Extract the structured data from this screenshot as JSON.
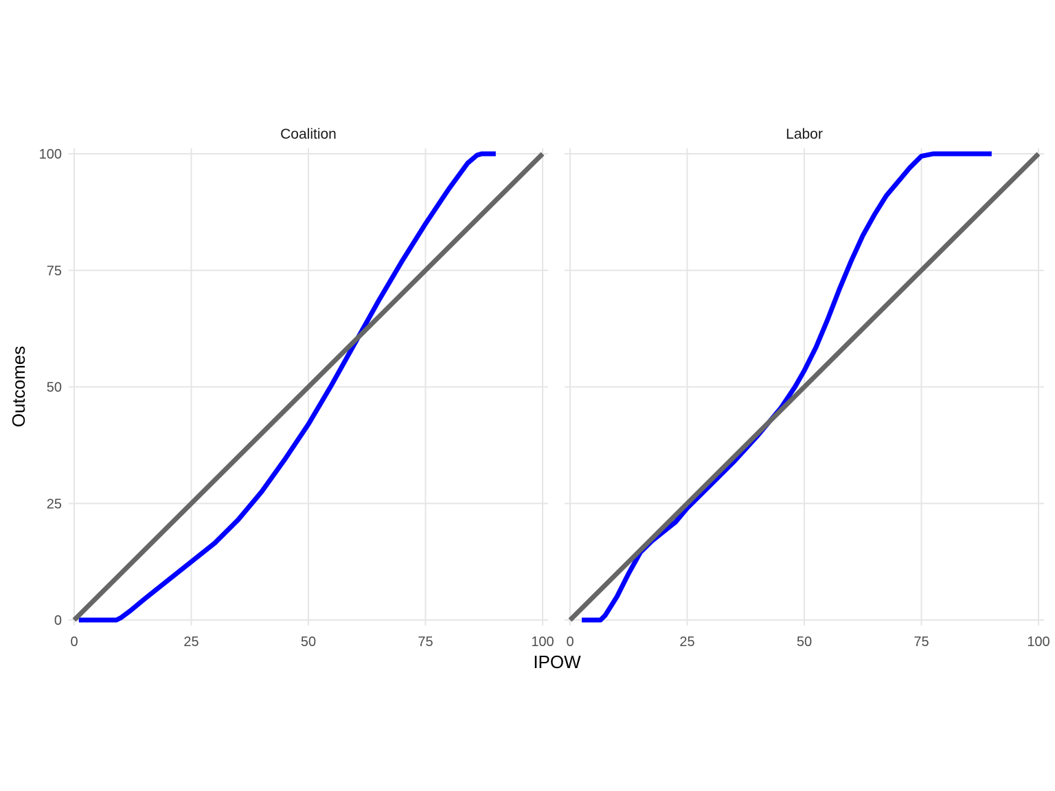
{
  "chart_data": {
    "type": "line",
    "xlabel": "IPOW",
    "ylabel": "Outcomes",
    "xlim": [
      0,
      100
    ],
    "ylim": [
      0,
      100
    ],
    "x_ticks": [
      0,
      25,
      50,
      75,
      100
    ],
    "y_ticks": [
      0,
      25,
      50,
      75,
      100
    ],
    "grid": true,
    "colors": {
      "curve": "#0000ff",
      "reference": "#666666",
      "grid": "#e5e5e5"
    },
    "panels": [
      {
        "label": "Coalition",
        "curve": [
          [
            1,
            0
          ],
          [
            5,
            0
          ],
          [
            9,
            0
          ],
          [
            10,
            0.5
          ],
          [
            12,
            2
          ],
          [
            15,
            4.5
          ],
          [
            20,
            8.5
          ],
          [
            25,
            12.5
          ],
          [
            30,
            16.5
          ],
          [
            35,
            21.5
          ],
          [
            40,
            27.5
          ],
          [
            45,
            34.5
          ],
          [
            50,
            42
          ],
          [
            55,
            50.5
          ],
          [
            60,
            59.5
          ],
          [
            65,
            68.5
          ],
          [
            70,
            77
          ],
          [
            75,
            85
          ],
          [
            80,
            92.5
          ],
          [
            84,
            98
          ],
          [
            86,
            99.7
          ],
          [
            87,
            100
          ],
          [
            90,
            100
          ]
        ],
        "reference": [
          [
            0,
            0
          ],
          [
            100,
            100
          ]
        ]
      },
      {
        "label": "Labor",
        "curve": [
          [
            2.5,
            0
          ],
          [
            6.5,
            0
          ],
          [
            7.5,
            1
          ],
          [
            10,
            5
          ],
          [
            12.5,
            10
          ],
          [
            15,
            14.5
          ],
          [
            17.5,
            17
          ],
          [
            20,
            19
          ],
          [
            22.5,
            21
          ],
          [
            25,
            24
          ],
          [
            30,
            29
          ],
          [
            35,
            34
          ],
          [
            40,
            39.5
          ],
          [
            45,
            45.5
          ],
          [
            48,
            50
          ],
          [
            50,
            53.5
          ],
          [
            52.5,
            58.5
          ],
          [
            55,
            64.5
          ],
          [
            57.5,
            71
          ],
          [
            60,
            77
          ],
          [
            62.5,
            82.5
          ],
          [
            65,
            87
          ],
          [
            67.5,
            91
          ],
          [
            70,
            94
          ],
          [
            72.5,
            97
          ],
          [
            75,
            99.5
          ],
          [
            77.5,
            100
          ],
          [
            80,
            100
          ],
          [
            90,
            100
          ]
        ],
        "reference": [
          [
            0,
            0
          ],
          [
            100,
            100
          ]
        ]
      }
    ]
  }
}
